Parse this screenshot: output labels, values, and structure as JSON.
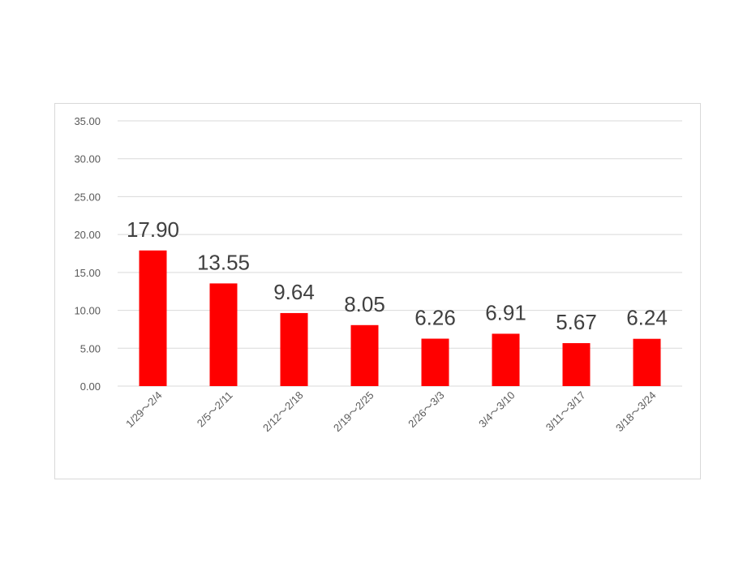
{
  "chart_data": {
    "type": "bar",
    "title": "",
    "xlabel": "",
    "ylabel": "",
    "categories": [
      "1/29～2/4",
      "2/5～2/11",
      "2/12～2/18",
      "2/19～2/25",
      "2/26～3/3",
      "3/4～3/10",
      "3/11～3/17",
      "3/18～3/24"
    ],
    "values": [
      17.9,
      13.55,
      9.64,
      8.05,
      6.26,
      6.91,
      5.67,
      6.24
    ],
    "data_labels": [
      "17.90",
      "13.55",
      "9.64",
      "8.05",
      "6.26",
      "6.91",
      "5.67",
      "6.24"
    ],
    "ylim": [
      0,
      35
    ],
    "y_ticks": [
      "0.00",
      "5.00",
      "10.00",
      "15.00",
      "20.00",
      "25.00",
      "30.00",
      "35.00"
    ],
    "grid": true,
    "legend": "none",
    "bar_color": "#ff0000"
  }
}
